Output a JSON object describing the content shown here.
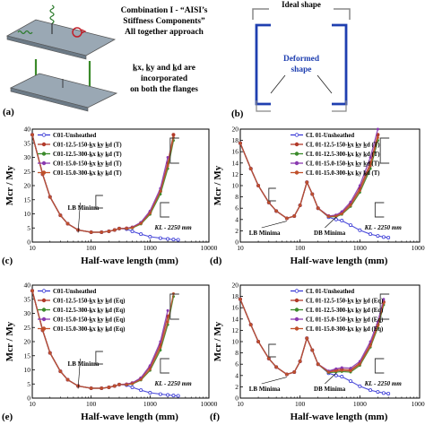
{
  "colors": {
    "s0": "#3b3bd6",
    "s1": "#b23a2a",
    "s2": "#3a8a2a",
    "s3": "#8a3ab0",
    "s4": "#c0502a",
    "section_blue": "#1f3fb0",
    "ideal_gray": "#888888"
  },
  "panel_a": {
    "letter": "(a)",
    "title": "Combination I - “AISI’s Stiffness Components” All together approach",
    "title_lines": [
      "Combination I - “AISI’s",
      "Stiffness Components”",
      "All together approach"
    ],
    "note_lines": [
      "k̲x, k̲y and k̲d are",
      "incorporated",
      "on both the flanges"
    ]
  },
  "panel_b": {
    "letter": "(b)",
    "ideal_label": "Ideal shape",
    "deformed_label_lines": [
      "Deformed",
      "shape"
    ]
  },
  "chart_data": [
    {
      "panel": "(c)",
      "type": "line",
      "xscale": "log",
      "xlim": [
        10,
        10000
      ],
      "ylim": [
        0,
        40
      ],
      "xticks": [
        "10",
        "100",
        "1000",
        "10000"
      ],
      "yticks": [
        "0",
        "5",
        "10",
        "15",
        "20",
        "25",
        "30",
        "35",
        "40"
      ],
      "xlabel": "Half-wave length (mm)",
      "ylabel": "Mcr / My",
      "annotations": [
        "LB Minima",
        "KL - 2250 mm"
      ],
      "legend_position": "top-left",
      "x": [
        10,
        15,
        20,
        30,
        40,
        60,
        100,
        150,
        200,
        250,
        300,
        400,
        500,
        700,
        1000,
        1500,
        2000,
        2500,
        3000
      ],
      "series": [
        {
          "name": "C01-Unsheathed",
          "values": [
            38,
            24,
            16,
            9.5,
            6.5,
            4.3,
            3.5,
            3.5,
            3.8,
            4.3,
            4.8,
            4.6,
            3.8,
            2.8,
            1.9,
            1.4,
            1.1,
            0.9,
            0.8
          ]
        },
        {
          "name": "C01-12.5-150-k̲x k̲y k̲d (T)",
          "values": [
            38,
            24,
            16,
            9.5,
            6.5,
            4.3,
            3.5,
            3.5,
            3.8,
            4.3,
            4.8,
            4.9,
            5.2,
            6.8,
            10.5,
            18,
            28,
            38,
            null
          ]
        },
        {
          "name": "C01-12.5-300-k̲x k̲y k̲d (T)",
          "values": [
            38,
            24,
            16,
            9.5,
            6.5,
            4.3,
            3.5,
            3.5,
            3.8,
            4.3,
            4.8,
            4.8,
            5.0,
            6.4,
            9.8,
            17,
            26,
            36,
            null
          ]
        },
        {
          "name": "C01-15.0-150-k̲x k̲y k̲d (T)",
          "values": [
            38,
            24,
            16,
            9.5,
            6.5,
            4.3,
            3.5,
            3.5,
            3.8,
            4.3,
            4.8,
            4.9,
            5.3,
            7.0,
            11,
            19,
            30,
            null,
            null
          ]
        },
        {
          "name": "C01-15.0-300-k̲x k̲y k̲d (T)",
          "values": [
            38,
            24,
            16,
            9.5,
            6.5,
            4.3,
            3.5,
            3.5,
            3.8,
            4.3,
            4.8,
            4.8,
            5.1,
            6.6,
            10.2,
            18,
            27,
            37,
            null
          ]
        }
      ]
    },
    {
      "panel": "(d)",
      "type": "line",
      "xscale": "log",
      "xlim": [
        10,
        10000
      ],
      "ylim": [
        0,
        20
      ],
      "xticks": [
        "10",
        "100",
        "1000",
        "10000"
      ],
      "yticks": [
        "0",
        "2",
        "4",
        "6",
        "8",
        "10",
        "12",
        "14",
        "16",
        "18",
        "20"
      ],
      "xlabel": "Half-wave length (mm)",
      "ylabel": "Mcr / My",
      "annotations": [
        "LB Minima",
        "DB Minima",
        "KL - 2250 mm"
      ],
      "legend_position": "top-right",
      "x": [
        10,
        15,
        20,
        30,
        40,
        60,
        80,
        100,
        130,
        160,
        200,
        300,
        400,
        500,
        700,
        1000,
        1500,
        2000,
        2500,
        3000
      ],
      "series": [
        {
          "name": "CL 01-Unsheathed",
          "values": [
            17.5,
            13,
            10,
            7,
            5.5,
            4.2,
            4.6,
            6.5,
            10.6,
            8.5,
            6.0,
            4.4,
            4.0,
            3.8,
            3.0,
            2.1,
            1.4,
            1.1,
            0.9,
            0.8
          ]
        },
        {
          "name": "CL 01-12.5-150-k̲x k̲y k̲d (T)",
          "values": [
            17.5,
            13,
            10,
            7,
            5.5,
            4.2,
            4.6,
            6.5,
            10.6,
            8.5,
            6.0,
            4.6,
            4.7,
            5.2,
            6.8,
            9.5,
            14,
            19,
            null,
            null
          ]
        },
        {
          "name": "CL 01-12.5-300-k̲x k̲y k̲d (T)",
          "values": [
            17.5,
            13,
            10,
            7,
            5.5,
            4.2,
            4.6,
            6.5,
            10.6,
            8.5,
            6.0,
            4.5,
            4.5,
            4.9,
            6.3,
            8.8,
            13,
            18,
            null,
            null
          ]
        },
        {
          "name": "CL 01-15.0-150-k̲x k̲y k̲d (T)",
          "values": [
            17.5,
            13,
            10,
            7,
            5.5,
            4.2,
            4.6,
            6.5,
            10.6,
            8.5,
            6.0,
            4.6,
            4.8,
            5.4,
            7.1,
            10,
            15,
            20,
            null,
            null
          ]
        },
        {
          "name": "CL 01-15.0-300-k̲x k̲y k̲d (T)",
          "values": [
            17.5,
            13,
            10,
            7,
            5.5,
            4.2,
            4.6,
            6.5,
            10.6,
            8.5,
            6.0,
            4.5,
            4.6,
            5.0,
            6.5,
            9.1,
            13.5,
            18.5,
            null,
            null
          ]
        }
      ]
    },
    {
      "panel": "(e)",
      "type": "line",
      "xscale": "log",
      "xlim": [
        10,
        10000
      ],
      "ylim": [
        0,
        40
      ],
      "xticks": [
        "10",
        "100",
        "1000",
        "10000"
      ],
      "yticks": [
        "0",
        "5",
        "10",
        "15",
        "20",
        "25",
        "30",
        "35",
        "40"
      ],
      "xlabel": "Half-wave length (mm)",
      "ylabel": "Mcr / My",
      "annotations": [
        "LB Minima",
        "KL - 2250 mm"
      ],
      "legend_position": "top-left",
      "x": [
        10,
        15,
        20,
        30,
        40,
        60,
        100,
        150,
        200,
        250,
        300,
        400,
        500,
        700,
        1000,
        1500,
        2000,
        2500,
        3000
      ],
      "series": [
        {
          "name": "C01-Unsheathed",
          "values": [
            38,
            24,
            16,
            9.5,
            6.5,
            4.3,
            3.5,
            3.5,
            3.8,
            4.3,
            4.8,
            4.6,
            3.8,
            2.8,
            1.9,
            1.4,
            1.1,
            0.9,
            0.8
          ]
        },
        {
          "name": "C01-12.5-150-k̲x k̲y k̲d (Eq)",
          "values": [
            38,
            24,
            16,
            9.5,
            6.5,
            4.3,
            3.5,
            3.5,
            3.8,
            4.3,
            4.8,
            4.9,
            5.3,
            7.0,
            11,
            19,
            29,
            null,
            null
          ]
        },
        {
          "name": "C01-12.5-300-k̲x k̲y k̲d (Eq)",
          "values": [
            38,
            24,
            16,
            9.5,
            6.5,
            4.3,
            3.5,
            3.5,
            3.8,
            4.3,
            4.8,
            4.8,
            5.0,
            6.4,
            9.8,
            17,
            26,
            36,
            null
          ]
        },
        {
          "name": "C01-15.0-150-k̲x k̲y k̲d (Eq)",
          "values": [
            38,
            24,
            16,
            9.5,
            6.5,
            4.3,
            3.5,
            3.5,
            3.8,
            4.3,
            4.8,
            5.0,
            5.4,
            7.2,
            11.5,
            20,
            31,
            null,
            null
          ]
        },
        {
          "name": "C01-15.0-300-k̲x k̲y k̲d (Eq)",
          "values": [
            38,
            24,
            16,
            9.5,
            6.5,
            4.3,
            3.5,
            3.5,
            3.8,
            4.3,
            4.8,
            4.8,
            5.1,
            6.6,
            10.2,
            18,
            27,
            37,
            null
          ]
        }
      ]
    },
    {
      "panel": "(f)",
      "type": "line",
      "xscale": "log",
      "xlim": [
        10,
        10000
      ],
      "ylim": [
        0,
        20
      ],
      "xticks": [
        "10",
        "100",
        "1000",
        "10000"
      ],
      "yticks": [
        "0",
        "2",
        "4",
        "6",
        "8",
        "10",
        "12",
        "14",
        "16",
        "18",
        "20"
      ],
      "xlabel": "Half-wave length (mm)",
      "ylabel": "Mcr / My",
      "annotations": [
        "LB Minima",
        "DB Minima",
        "KL - 2250 mm"
      ],
      "legend_position": "top-right",
      "x": [
        10,
        15,
        20,
        30,
        40,
        60,
        80,
        100,
        130,
        160,
        200,
        300,
        400,
        500,
        700,
        1000,
        1500,
        2000,
        2500,
        3000
      ],
      "series": [
        {
          "name": "CL 01-Unsheathed",
          "values": [
            17.5,
            13,
            10,
            7,
            5.5,
            4.2,
            4.6,
            6.5,
            10.6,
            8.5,
            6.0,
            4.4,
            4.0,
            3.8,
            3.0,
            2.1,
            1.4,
            1.1,
            0.9,
            0.8
          ]
        },
        {
          "name": "CL 01-12.5-150-k̲x k̲y k̲d (Eq)",
          "values": [
            17.5,
            13,
            10,
            7,
            5.5,
            4.2,
            4.6,
            6.5,
            10.6,
            8.5,
            6.0,
            4.7,
            5.0,
            5.1,
            5.0,
            6.2,
            9.5,
            13,
            17,
            null
          ]
        },
        {
          "name": "CL 01-12.5-300-k̲x k̲y k̲d (Eq)",
          "values": [
            17.5,
            13,
            10,
            7,
            5.5,
            4.2,
            4.6,
            6.5,
            10.6,
            8.5,
            6.0,
            4.5,
            4.6,
            4.7,
            4.6,
            5.8,
            9.0,
            12.5,
            16.5,
            null
          ]
        },
        {
          "name": "CL 01-15.0-150-k̲x k̲y k̲d (Eq)",
          "values": [
            17.5,
            13,
            10,
            7,
            5.5,
            4.2,
            4.6,
            6.5,
            10.6,
            8.5,
            6.0,
            4.8,
            5.2,
            5.4,
            5.3,
            6.5,
            10,
            13.5,
            17.5,
            null
          ]
        },
        {
          "name": "CL 01-15.0-300-k̲x k̲y k̲d (Eq)",
          "values": [
            17.5,
            13,
            10,
            7,
            5.5,
            4.2,
            4.6,
            6.5,
            10.6,
            8.5,
            6.0,
            4.6,
            4.8,
            4.9,
            4.8,
            6.0,
            9.2,
            12.8,
            16.8,
            null
          ]
        }
      ]
    }
  ]
}
